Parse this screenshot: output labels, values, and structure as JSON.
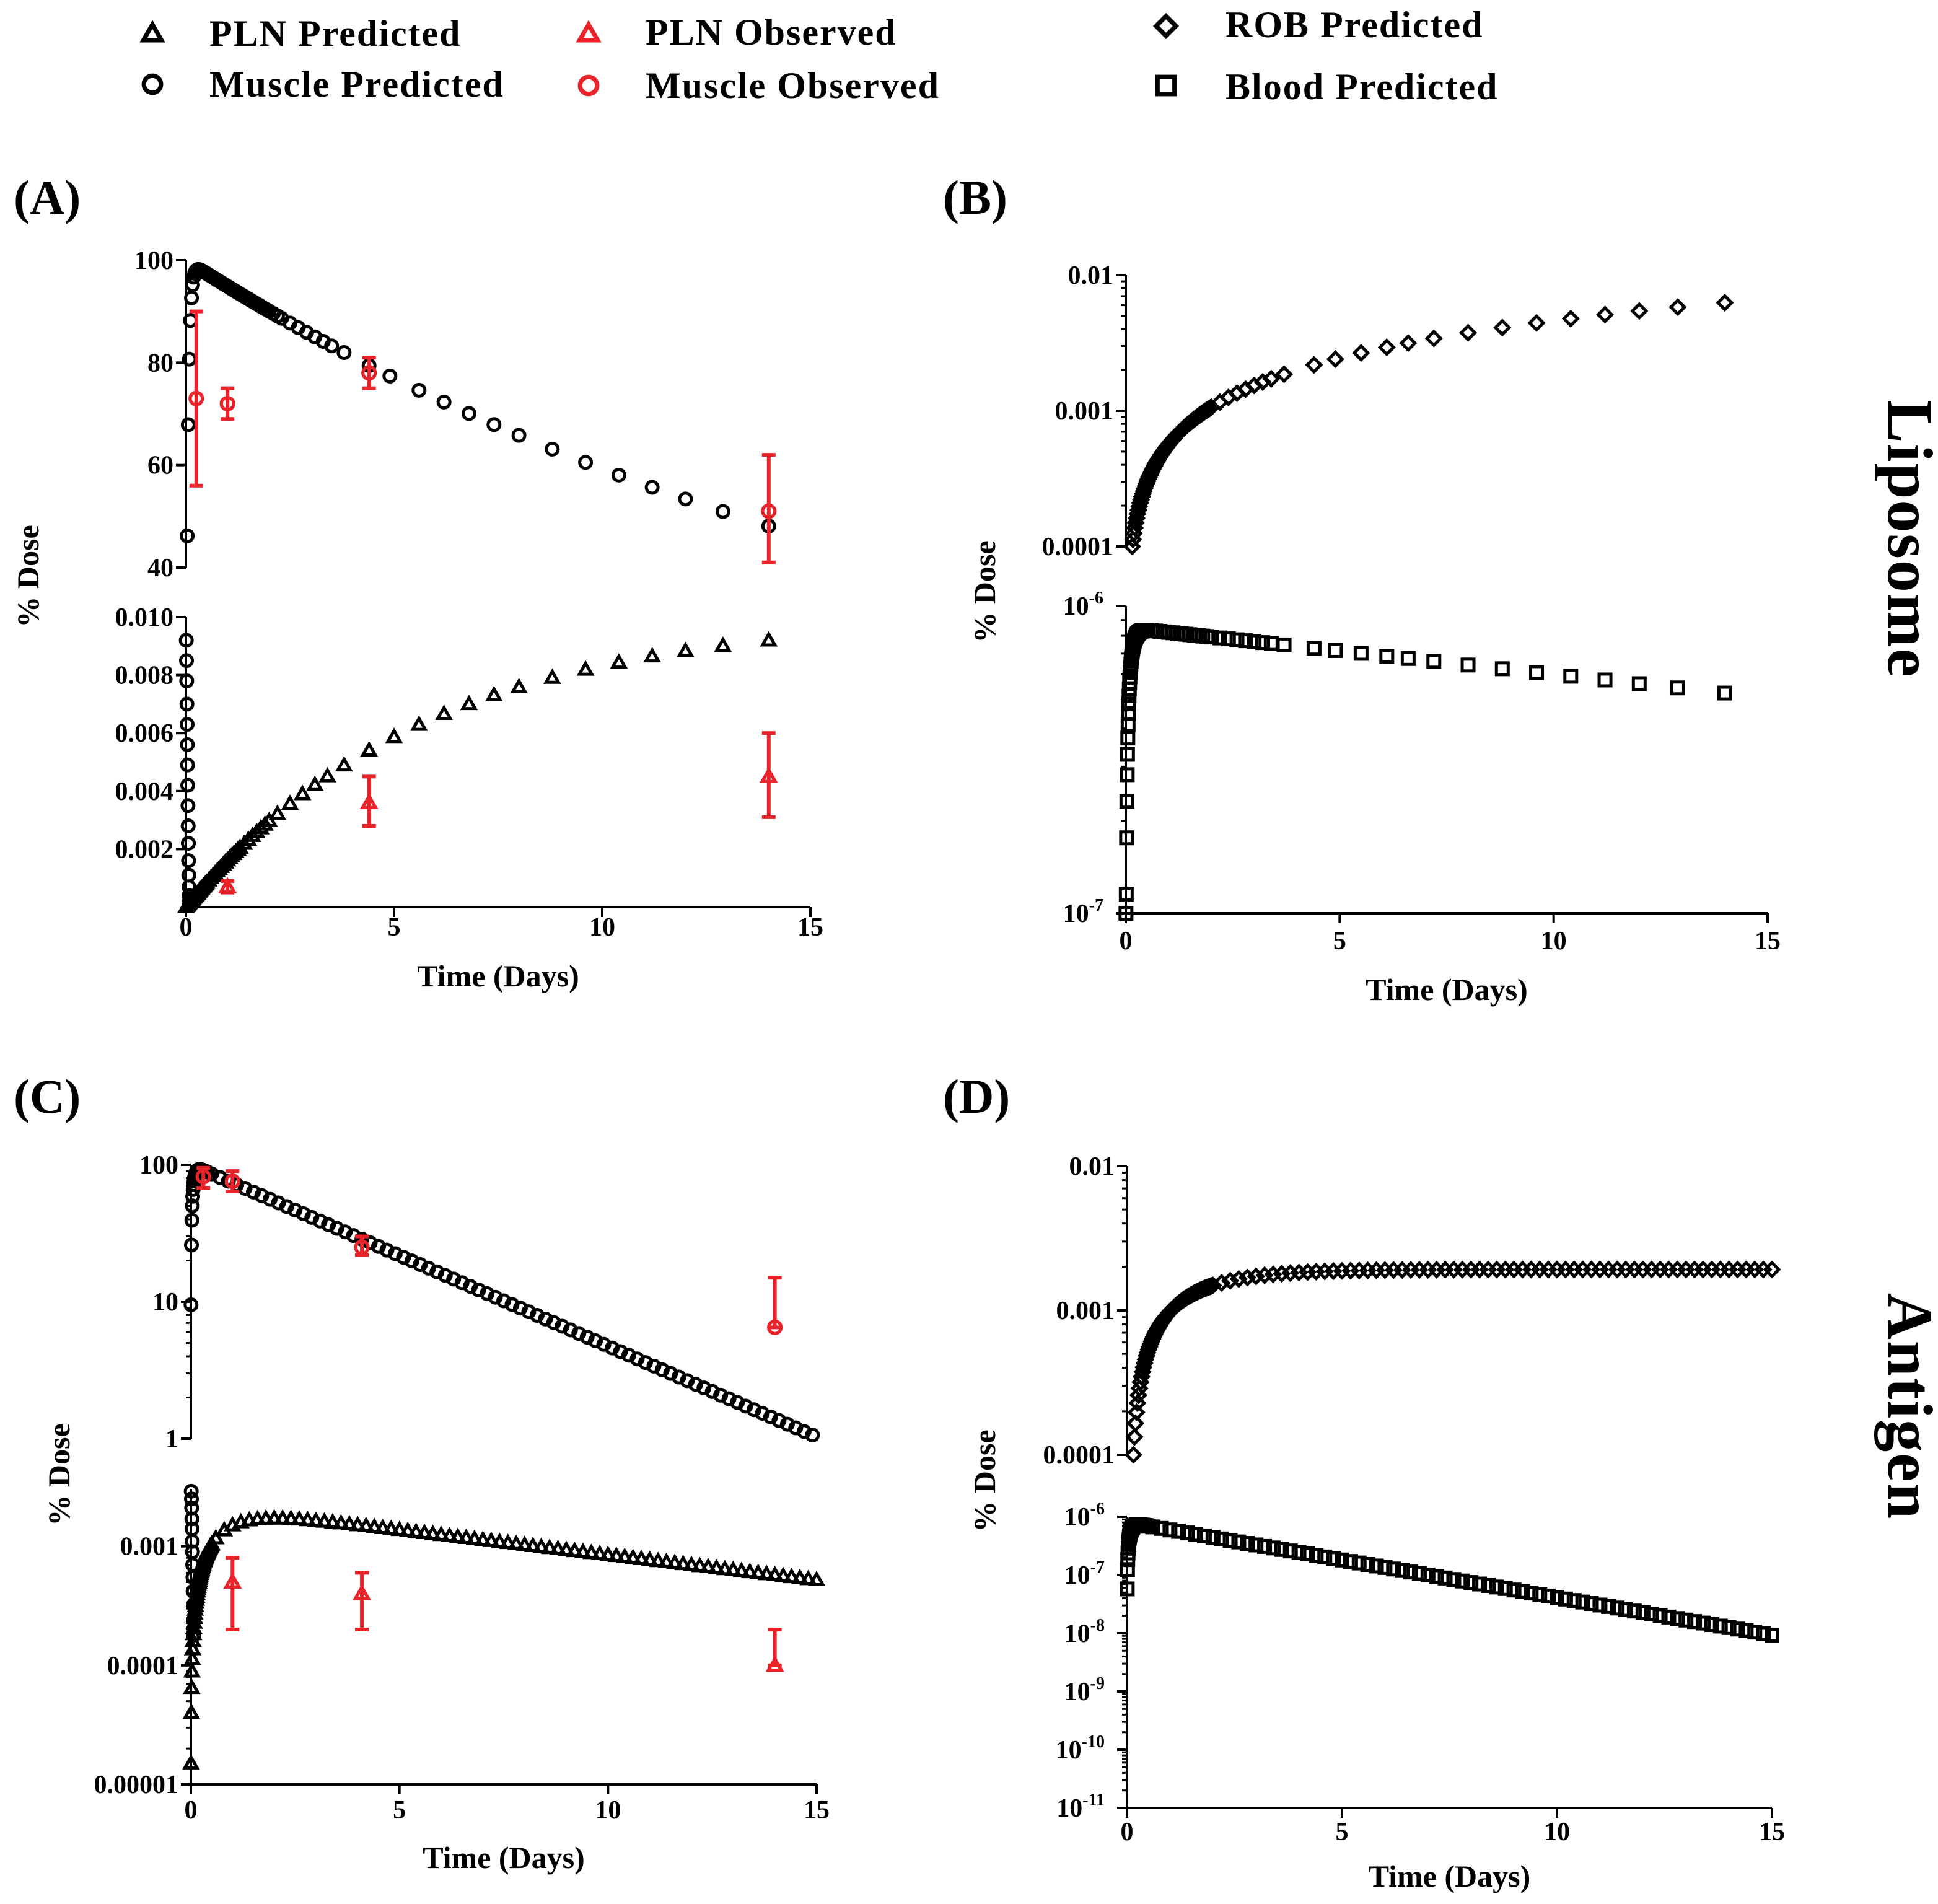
{
  "legend": [
    {
      "marker": "triangle",
      "color": "#000000",
      "label": "PLN Predicted"
    },
    {
      "marker": "circle",
      "color": "#000000",
      "label": "Muscle Predicted"
    },
    {
      "marker": "triangle",
      "color": "#e8232a",
      "label": "PLN Observed"
    },
    {
      "marker": "circle",
      "color": "#e8232a",
      "label": "Muscle Observed"
    },
    {
      "marker": "diamond",
      "color": "#000000",
      "label": "ROB  Predicted"
    },
    {
      "marker": "square",
      "color": "#000000",
      "label": "Blood Predicted"
    }
  ],
  "row_labels": {
    "top": "Liposome",
    "bottom": "Antigen"
  },
  "colors": {
    "predicted": "#000000",
    "observed": "#e8232a"
  },
  "chart_data": [
    {
      "panel": "(A)",
      "type": "scatter",
      "x_label": "Time (Days)",
      "y_label": "% Dose",
      "x_range": [
        0,
        15
      ],
      "x_ticks": [
        0,
        5,
        10,
        15
      ],
      "subplots": [
        {
          "scale": "linear",
          "y_range": [
            40,
            100
          ],
          "y_ticks": [
            {
              "v": 40,
              "t": "40"
            },
            {
              "v": 60,
              "t": "60"
            },
            {
              "v": 80,
              "t": "80"
            },
            {
              "v": 100,
              "t": "100"
            }
          ],
          "series": [
            {
              "name": "Muscle Predicted",
              "model": "pk",
              "p": {
                "A": 100,
                "ka": 20,
                "ke": 0.0523
              },
              "dense_n": 20,
              "dense_max": 0.5,
              "points": [
                0.55,
                0.6,
                0.65,
                0.7,
                0.75,
                0.8,
                0.85,
                0.9,
                0.95,
                1.0,
                1.05,
                1.1,
                1.15,
                1.2,
                1.25,
                1.3,
                1.35,
                1.4,
                1.45,
                1.5,
                1.55,
                1.6,
                1.65,
                1.7,
                1.75,
                1.8,
                1.85,
                1.9,
                1.95,
                2.0,
                2.1,
                2.2,
                2.3,
                2.5,
                2.7,
                2.9,
                3.1,
                3.3,
                3.5,
                3.8,
                4.4,
                4.9,
                5.6,
                6.2,
                6.8,
                7.4,
                8.0,
                8.8,
                9.6,
                10.4,
                11.2,
                12.0,
                12.9,
                14.0
              ]
            },
            {
              "name": "Muscle Observed",
              "points": [
                {
                  "x": 0.25,
                  "y": 73,
                  "lo": 56,
                  "hi": 90
                },
                {
                  "x": 1.0,
                  "y": 72,
                  "lo": 69,
                  "hi": 75
                },
                {
                  "x": 4.4,
                  "y": 78,
                  "lo": 75,
                  "hi": 81
                },
                {
                  "x": 14.0,
                  "y": 51,
                  "lo": 41,
                  "hi": 62
                }
              ]
            }
          ]
        },
        {
          "scale": "linear",
          "y_range": [
            0,
            0.01
          ],
          "y_ticks": [
            {
              "v": 0.002,
              "t": "0.002"
            },
            {
              "v": 0.004,
              "t": "0.004"
            },
            {
              "v": 0.006,
              "t": "0.006"
            },
            {
              "v": 0.008,
              "t": "0.008"
            },
            {
              "v": 0.01,
              "t": "0.010"
            }
          ],
          "series": [
            {
              "name": "PLN Predicted",
              "model": "pln_a",
              "dense_n": 25,
              "dense_max": 0.5,
              "points": [
                0.55,
                0.6,
                0.65,
                0.7,
                0.75,
                0.8,
                0.85,
                0.9,
                0.95,
                1.0,
                1.05,
                1.1,
                1.15,
                1.2,
                1.25,
                1.3,
                1.4,
                1.5,
                1.6,
                1.7,
                1.8,
                1.9,
                2.0,
                2.2,
                2.5,
                2.8,
                3.1,
                3.4,
                3.8,
                4.4,
                5.0,
                5.6,
                6.2,
                6.8,
                7.4,
                8.0,
                8.8,
                9.6,
                10.4,
                11.2,
                12.0,
                12.9,
                14.0
              ]
            },
            {
              "name": "Muscle Predicted",
              "values": [
                [
                  0.01,
                  0.0092
                ],
                [
                  0.015,
                  0.0085
                ],
                [
                  0.02,
                  0.0078
                ],
                [
                  0.025,
                  0.007
                ],
                [
                  0.03,
                  0.0063
                ],
                [
                  0.035,
                  0.0056
                ],
                [
                  0.04,
                  0.0049
                ],
                [
                  0.045,
                  0.0042
                ],
                [
                  0.05,
                  0.0035
                ],
                [
                  0.055,
                  0.0028
                ],
                [
                  0.06,
                  0.0022
                ],
                [
                  0.065,
                  0.0016
                ],
                [
                  0.07,
                  0.0011
                ],
                [
                  0.075,
                  0.0007
                ],
                [
                  0.08,
                  0.0004
                ],
                [
                  0.085,
                  0.0002
                ],
                [
                  0.09,
                  0.0001
                ]
              ]
            },
            {
              "name": "PLN Observed",
              "points": [
                {
                  "x": 1.0,
                  "y": 0.0007,
                  "lo": 0.0005,
                  "hi": 0.0009
                },
                {
                  "x": 4.4,
                  "y": 0.0036,
                  "lo": 0.0028,
                  "hi": 0.0045
                },
                {
                  "x": 14.0,
                  "y": 0.0045,
                  "lo": 0.0031,
                  "hi": 0.006
                }
              ]
            }
          ]
        }
      ]
    },
    {
      "panel": "(B)",
      "type": "scatter",
      "x_label": "Time (Days)",
      "y_label": "% Dose",
      "x_range": [
        0,
        15
      ],
      "x_ticks": [
        0,
        5,
        10,
        15
      ],
      "subplots": [
        {
          "scale": "log",
          "y_range": [
            0.0001,
            0.01
          ],
          "y_ticks": [
            {
              "v": 0.0001,
              "t": "0.0001"
            },
            {
              "v": 0.001,
              "t": "0.001"
            },
            {
              "v": 0.01,
              "t": "0.01"
            }
          ],
          "series": [
            {
              "name": "ROB  Predicted",
              "model": "rob_b",
              "dense_n": 90,
              "dense_min": 0.15,
              "dense_max": 2.0,
              "points": [
                2.2,
                2.4,
                2.6,
                2.8,
                3.0,
                3.2,
                3.4,
                3.7,
                4.4,
                4.9,
                5.5,
                6.1,
                6.6,
                7.2,
                8.0,
                8.8,
                9.6,
                10.4,
                11.2,
                12.0,
                12.9,
                14.0
              ]
            }
          ]
        },
        {
          "scale": "log",
          "y_range": [
            1e-07,
            1e-06
          ],
          "y_ticks": [
            {
              "v": 1e-07,
              "t": "10",
              "exp": "-7"
            },
            {
              "v": 1e-06,
              "t": "10",
              "exp": "-6"
            }
          ],
          "series": [
            {
              "name": "Blood Predicted",
              "model": "blood_b",
              "dense_n": 70,
              "dense_max": 0.5,
              "points": [
                0.6,
                0.7,
                0.8,
                0.9,
                1.0,
                1.1,
                1.2,
                1.3,
                1.4,
                1.5,
                1.6,
                1.7,
                1.8,
                1.9,
                2.0,
                2.2,
                2.4,
                2.6,
                2.8,
                3.0,
                3.2,
                3.4,
                3.7,
                4.4,
                4.9,
                5.5,
                6.1,
                6.6,
                7.2,
                8.0,
                8.8,
                9.6,
                10.4,
                11.2,
                12.0,
                12.9,
                14.0
              ]
            }
          ]
        }
      ]
    },
    {
      "panel": "(C)",
      "type": "scatter",
      "x_label": "Time (Days)",
      "y_label": "% Dose",
      "x_range": [
        0,
        15
      ],
      "x_ticks": [
        0,
        5,
        10,
        15
      ],
      "subplots": [
        {
          "scale": "log",
          "y_range": [
            1,
            100
          ],
          "y_ticks": [
            {
              "v": 1,
              "t": "1"
            },
            {
              "v": 10,
              "t": "10"
            },
            {
              "v": 100,
              "t": "100"
            }
          ],
          "series": [
            {
              "name": "Muscle Predicted",
              "model": "pk_log",
              "p": {
                "A": 100,
                "ka": 20,
                "ke": 0.305
              },
              "dense_n": 40,
              "dense_max": 0.4,
              "step": 0.2,
              "step_from": 0.5,
              "step_to": 15.0
            },
            {
              "name": "Muscle Observed",
              "points": [
                {
                  "x": 0.3,
                  "y": 82,
                  "lo": 68,
                  "hi": 95
                },
                {
                  "x": 1.0,
                  "y": 76,
                  "lo": 64,
                  "hi": 90
                },
                {
                  "x": 4.1,
                  "y": 25,
                  "lo": 22,
                  "hi": 30
                },
                {
                  "x": 14.0,
                  "y": 6.5,
                  "lo": 6.5,
                  "hi": 15
                }
              ]
            }
          ]
        },
        {
          "scale": "log",
          "y_range": [
            1e-05,
            0.003
          ],
          "y_ticks": [
            {
              "v": 1e-05,
              "t": "0.00001"
            },
            {
              "v": 0.0001,
              "t": "0.0001"
            },
            {
              "v": 0.001,
              "t": "0.001"
            }
          ],
          "series": [
            {
              "name": "PLN Predicted",
              "model": "pln_c",
              "dense_n": 60,
              "dense_max": 0.5,
              "step": 0.2,
              "step_from": 0.6,
              "step_to": 15.0
            },
            {
              "name": "Muscle Predicted",
              "values": [
                [
                  0.01,
                  0.0029
                ],
                [
                  0.015,
                  0.0025
                ],
                [
                  0.02,
                  0.0021
                ],
                [
                  0.025,
                  0.0017
                ],
                [
                  0.03,
                  0.0014
                ],
                [
                  0.035,
                  0.0011
                ],
                [
                  0.04,
                  0.0009
                ],
                [
                  0.045,
                  0.0007
                ],
                [
                  0.05,
                  0.00055
                ],
                [
                  0.055,
                  0.00042
                ],
                [
                  0.06,
                  0.00032
                ],
                [
                  0.065,
                  0.00024
                ],
                [
                  0.07,
                  0.00018
                ]
              ]
            },
            {
              "name": "PLN Observed",
              "points": [
                {
                  "x": 1.0,
                  "y": 0.0005,
                  "lo": 0.0002,
                  "hi": 0.0008
                },
                {
                  "x": 4.1,
                  "y": 0.0004,
                  "lo": 0.0002,
                  "hi": 0.0006
                },
                {
                  "x": 14.0,
                  "y": 0.0001,
                  "lo": 0.0001,
                  "hi": 0.0002
                }
              ]
            }
          ]
        }
      ]
    },
    {
      "panel": "(D)",
      "type": "scatter",
      "x_label": "Time (Days)",
      "y_label": "% Dose",
      "x_range": [
        0,
        15
      ],
      "x_ticks": [
        0,
        5,
        10,
        15
      ],
      "subplots": [
        {
          "scale": "log",
          "y_range": [
            0.0001,
            0.01
          ],
          "y_ticks": [
            {
              "v": 0.0001,
              "t": "0.0001"
            },
            {
              "v": 0.001,
              "t": "0.001"
            },
            {
              "v": 0.01,
              "t": "0.01"
            }
          ],
          "series": [
            {
              "name": "ROB  Predicted",
              "model": "rob_d",
              "dense_n": 80,
              "dense_min": 0.15,
              "dense_max": 2.0,
              "step": 0.2,
              "step_from": 2.2,
              "step_to": 15.0
            }
          ]
        },
        {
          "scale": "log",
          "y_range": [
            1e-11,
            1e-06
          ],
          "y_ticks": [
            {
              "v": 1e-11,
              "t": "10",
              "exp": "-11"
            },
            {
              "v": 1e-10,
              "t": "10",
              "exp": "-10"
            },
            {
              "v": 1e-09,
              "t": "10",
              "exp": "-9"
            },
            {
              "v": 1e-08,
              "t": "10",
              "exp": "-8"
            },
            {
              "v": 1e-07,
              "t": "10",
              "exp": "-7"
            },
            {
              "v": 1e-06,
              "t": "10",
              "exp": "-6"
            }
          ],
          "series": [
            {
              "name": "Blood Predicted",
              "model": "blood_d",
              "dense_n": 80,
              "dense_max": 0.5,
              "step": 0.2,
              "step_from": 0.6,
              "step_to": 15.0
            }
          ]
        }
      ]
    }
  ]
}
